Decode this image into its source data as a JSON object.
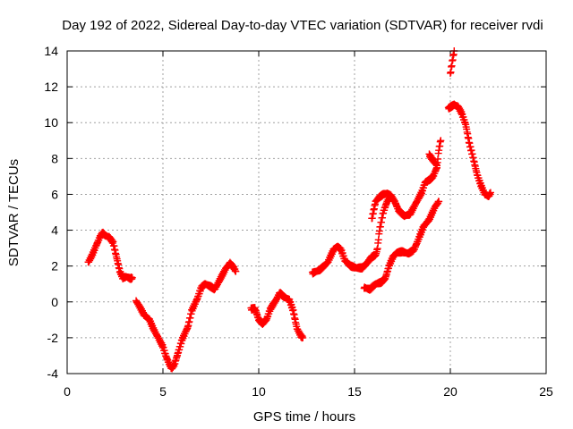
{
  "chart_data": {
    "type": "scatter",
    "title": "Day 192 of 2022, Sidereal Day-to-day VTEC variation (SDTVAR) for receiver rvdi",
    "xlabel": "GPS time / hours",
    "ylabel": "SDTVAR / TECUs",
    "xlim": [
      0,
      25
    ],
    "ylim": [
      -4,
      14
    ],
    "xticks": [
      0,
      5,
      10,
      15,
      20,
      25
    ],
    "yticks": [
      -4,
      -2,
      0,
      2,
      4,
      6,
      8,
      10,
      12,
      14
    ],
    "grid": true,
    "marker": "+",
    "series_color": "#ff0000",
    "segments": [
      [
        [
          1.1,
          2.2
        ],
        [
          1.3,
          2.6
        ],
        [
          1.5,
          3.1
        ],
        [
          1.7,
          3.6
        ],
        [
          1.85,
          3.85
        ],
        [
          2.0,
          3.7
        ],
        [
          2.2,
          3.6
        ],
        [
          2.4,
          3.3
        ],
        [
          2.6,
          2.4
        ],
        [
          2.75,
          1.7
        ],
        [
          2.9,
          1.35
        ],
        [
          3.1,
          1.4
        ],
        [
          3.3,
          1.3
        ],
        [
          3.4,
          1.35
        ]
      ],
      [
        [
          3.6,
          0.05
        ],
        [
          3.8,
          -0.3
        ],
        [
          4.0,
          -0.7
        ],
        [
          4.3,
          -1.0
        ],
        [
          4.5,
          -1.5
        ],
        [
          4.75,
          -2.0
        ],
        [
          5.0,
          -2.5
        ],
        [
          5.15,
          -3.0
        ],
        [
          5.3,
          -3.4
        ],
        [
          5.45,
          -3.7
        ],
        [
          5.6,
          -3.5
        ],
        [
          5.8,
          -2.8
        ],
        [
          6.0,
          -2.1
        ],
        [
          6.3,
          -1.4
        ],
        [
          6.5,
          -0.5
        ],
        [
          6.8,
          0.2
        ],
        [
          7.0,
          0.8
        ],
        [
          7.2,
          1.0
        ],
        [
          7.5,
          0.85
        ],
        [
          7.7,
          0.7
        ],
        [
          8.0,
          1.3
        ],
        [
          8.3,
          1.9
        ],
        [
          8.5,
          2.15
        ],
        [
          8.7,
          1.9
        ],
        [
          8.8,
          1.7
        ]
      ],
      [
        [
          9.6,
          -0.4
        ],
        [
          9.8,
          -0.35
        ],
        [
          10.0,
          -1.0
        ],
        [
          10.2,
          -1.2
        ],
        [
          10.4,
          -1.0
        ],
        [
          10.6,
          -0.4
        ],
        [
          10.9,
          0.1
        ],
        [
          11.1,
          0.5
        ],
        [
          11.3,
          0.3
        ],
        [
          11.6,
          0.1
        ],
        [
          11.8,
          -0.5
        ],
        [
          12.0,
          -1.5
        ],
        [
          12.2,
          -1.9
        ],
        [
          12.3,
          -2.0
        ]
      ],
      [
        [
          12.8,
          1.6
        ],
        [
          13.2,
          1.8
        ],
        [
          13.6,
          2.2
        ],
        [
          13.9,
          2.9
        ],
        [
          14.1,
          3.1
        ],
        [
          14.3,
          2.9
        ],
        [
          14.5,
          2.3
        ],
        [
          14.8,
          2.0
        ],
        [
          15.1,
          1.9
        ],
        [
          15.4,
          1.9
        ],
        [
          15.6,
          2.1
        ],
        [
          15.9,
          2.5
        ],
        [
          16.1,
          2.6
        ],
        [
          16.2,
          3.0
        ],
        [
          16.3,
          4.0
        ],
        [
          16.5,
          5.0
        ],
        [
          16.7,
          5.6
        ],
        [
          16.9,
          5.9
        ],
        [
          17.1,
          5.6
        ],
        [
          17.3,
          5.1
        ],
        [
          17.6,
          4.8
        ],
        [
          17.9,
          4.9
        ],
        [
          18.2,
          5.5
        ],
        [
          18.5,
          6.1
        ],
        [
          18.7,
          6.7
        ],
        [
          18.9,
          6.8
        ],
        [
          19.1,
          7.0
        ],
        [
          19.3,
          7.5
        ],
        [
          19.4,
          8.5
        ],
        [
          19.5,
          9.0
        ]
      ],
      [
        [
          15.5,
          0.8
        ],
        [
          15.8,
          0.7
        ],
        [
          16.1,
          1.0
        ],
        [
          16.4,
          1.1
        ],
        [
          16.6,
          1.3
        ],
        [
          16.8,
          2.0
        ],
        [
          17.0,
          2.5
        ],
        [
          17.2,
          2.75
        ],
        [
          17.5,
          2.8
        ],
        [
          17.8,
          2.7
        ],
        [
          18.1,
          2.9
        ],
        [
          18.3,
          3.4
        ],
        [
          18.6,
          4.2
        ],
        [
          18.9,
          4.6
        ],
        [
          19.2,
          5.3
        ],
        [
          19.4,
          5.6
        ]
      ],
      [
        [
          15.9,
          4.6
        ],
        [
          16.1,
          5.6
        ],
        [
          16.3,
          5.85
        ],
        [
          16.5,
          6.0
        ],
        [
          16.7,
          6.05
        ],
        [
          16.9,
          5.9
        ]
      ],
      [
        [
          18.9,
          8.2
        ],
        [
          19.1,
          7.9
        ],
        [
          19.3,
          7.6
        ]
      ],
      [
        [
          20.0,
          12.7
        ],
        [
          20.1,
          13.4
        ],
        [
          20.2,
          14.0
        ]
      ],
      [
        [
          19.9,
          10.8
        ],
        [
          20.2,
          11.0
        ],
        [
          20.4,
          10.9
        ],
        [
          20.6,
          10.5
        ],
        [
          20.8,
          9.9
        ],
        [
          21.0,
          8.8
        ],
        [
          21.2,
          8.0
        ],
        [
          21.4,
          7.1
        ],
        [
          21.6,
          6.5
        ],
        [
          21.8,
          6.0
        ],
        [
          22.0,
          5.9
        ],
        [
          22.1,
          6.1
        ]
      ]
    ]
  }
}
